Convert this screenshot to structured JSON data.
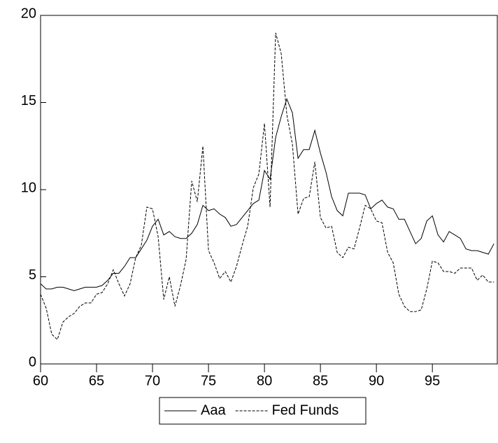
{
  "chart_data": {
    "type": "line",
    "x": [
      60,
      60.5,
      61,
      61.5,
      62,
      62.5,
      63,
      63.5,
      64,
      64.5,
      65,
      65.5,
      66,
      66.5,
      67,
      67.5,
      68,
      68.5,
      69,
      69.5,
      70,
      70.5,
      71,
      71.5,
      72,
      72.5,
      73,
      73.5,
      74,
      74.5,
      75,
      75.5,
      76,
      76.5,
      77,
      77.5,
      78,
      78.5,
      79,
      79.5,
      80,
      80.5,
      81,
      81.5,
      82,
      82.5,
      83,
      83.5,
      84,
      84.5,
      85,
      85.5,
      86,
      86.5,
      87,
      87.5,
      88,
      88.5,
      89,
      89.5,
      90,
      90.5,
      91,
      91.5,
      92,
      92.5,
      93,
      93.5,
      94,
      94.5,
      95,
      95.5,
      96,
      96.5,
      97,
      97.5,
      98,
      98.5,
      99,
      99.5,
      100,
      100.5
    ],
    "series": [
      {
        "name": "Aaa",
        "color": "#000000",
        "style": "solid",
        "values": [
          4.6,
          4.3,
          4.3,
          4.4,
          4.4,
          4.3,
          4.2,
          4.3,
          4.4,
          4.4,
          4.4,
          4.5,
          4.8,
          5.2,
          5.2,
          5.6,
          6.1,
          6.1,
          6.6,
          7.1,
          7.9,
          8.3,
          7.4,
          7.6,
          7.3,
          7.2,
          7.2,
          7.5,
          8.0,
          9.1,
          8.8,
          8.9,
          8.6,
          8.4,
          7.9,
          8.0,
          8.4,
          8.8,
          9.2,
          9.4,
          11.1,
          10.6,
          13.0,
          14.2,
          15.2,
          14.4,
          11.8,
          12.3,
          12.3,
          13.4,
          12.1,
          11.0,
          9.6,
          8.8,
          8.5,
          9.8,
          9.8,
          9.8,
          9.7,
          8.9,
          9.2,
          9.4,
          9.0,
          8.9,
          8.3,
          8.3,
          7.6,
          6.9,
          7.2,
          8.2,
          8.5,
          7.4,
          7.0,
          7.6,
          7.4,
          7.2,
          6.6,
          6.5,
          6.5,
          6.4,
          6.3,
          6.9
        ]
      },
      {
        "name": "Fed Funds",
        "color": "#000000",
        "style": "dashed",
        "values": [
          4.0,
          3.2,
          1.7,
          1.4,
          2.4,
          2.7,
          2.9,
          3.3,
          3.5,
          3.5,
          4.0,
          4.1,
          4.6,
          5.4,
          4.6,
          3.9,
          4.6,
          6.1,
          6.8,
          9.0,
          8.9,
          7.3,
          3.7,
          5.0,
          3.3,
          4.5,
          6.0,
          10.5,
          9.3,
          12.5,
          6.5,
          5.8,
          4.9,
          5.3,
          4.7,
          5.6,
          6.8,
          7.9,
          10.1,
          10.9,
          13.8,
          9.0,
          19.0,
          17.8,
          14.3,
          12.6,
          8.6,
          9.5,
          9.6,
          11.6,
          8.4,
          7.8,
          7.9,
          6.4,
          6.1,
          6.7,
          6.6,
          7.8,
          9.1,
          8.9,
          8.2,
          8.1,
          6.4,
          5.8,
          4.0,
          3.3,
          3.0,
          3.0,
          3.1,
          4.3,
          5.9,
          5.8,
          5.3,
          5.3,
          5.2,
          5.5,
          5.5,
          5.5,
          4.8,
          5.1,
          4.7,
          4.7
        ]
      }
    ],
    "xlim": [
      60,
      100.8
    ],
    "xticks": [
      60,
      65,
      70,
      75,
      80,
      85,
      90,
      95
    ],
    "ylim": [
      0,
      20
    ],
    "yticks": [
      0,
      5,
      10,
      15,
      20
    ],
    "grid": false,
    "legend": "bottom"
  }
}
